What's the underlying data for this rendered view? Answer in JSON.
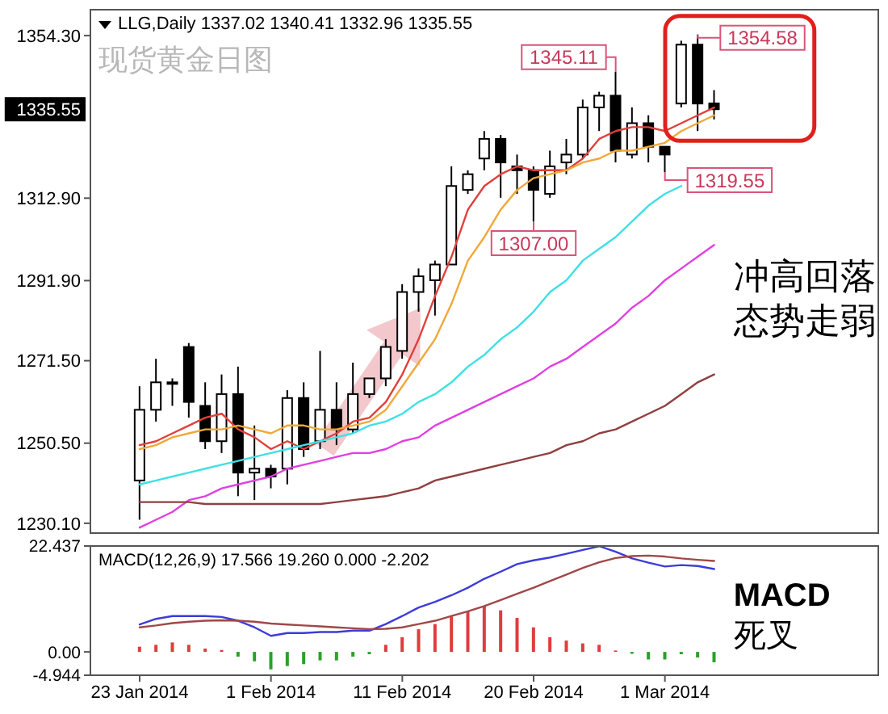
{
  "chart_data": [
    {
      "type": "candlestick",
      "title": "LLG,Daily 1337.02 1340.41 1332.96 1335.55",
      "subtitle": "现货黄金日图",
      "categories": [
        null,
        null,
        null,
        null,
        null,
        null,
        null,
        null,
        null,
        null,
        null,
        null,
        null,
        null,
        null,
        null,
        null,
        null,
        null,
        null,
        null,
        null,
        null,
        null,
        null,
        null,
        null,
        null,
        null,
        null,
        null,
        null,
        null,
        null,
        null,
        null
      ],
      "ohlc": [
        [
          1241,
          1265,
          1231,
          1259
        ],
        [
          1259,
          1272,
          1256,
          1266
        ],
        [
          1266,
          1267,
          1260,
          1266
        ],
        [
          1275,
          1276,
          1257,
          1261
        ],
        [
          1260,
          1266,
          1249,
          1251
        ],
        [
          1251,
          1268,
          1248,
          1263
        ],
        [
          1263,
          1270,
          1237,
          1243
        ],
        [
          1243,
          1255,
          1236,
          1244
        ],
        [
          1244,
          1245,
          1239,
          1242
        ],
        [
          1244,
          1264,
          1240,
          1262
        ],
        [
          1262,
          1266,
          1247,
          1249
        ],
        [
          1251,
          1274,
          1249,
          1259
        ],
        [
          1259,
          1266,
          1250,
          1254
        ],
        [
          1254,
          1271,
          1253,
          1263
        ],
        [
          1263,
          1267,
          1262,
          1267
        ],
        [
          1267,
          1277,
          1265,
          1275
        ],
        [
          1274,
          1291,
          1272,
          1289
        ],
        [
          1289,
          1295,
          1284,
          1293
        ],
        [
          1292,
          1297,
          1283,
          1296
        ],
        [
          1296,
          1321,
          1296,
          1316
        ],
        [
          1315,
          1320,
          1314,
          1319
        ],
        [
          1323,
          1330,
          1320,
          1328
        ],
        [
          1328,
          1329,
          1313,
          1322
        ],
        [
          1321,
          1324,
          1314,
          1320
        ],
        [
          1320,
          1321,
          1307,
          1315
        ],
        [
          1314,
          1325,
          1313,
          1321
        ],
        [
          1322,
          1328,
          1319,
          1324
        ],
        [
          1324,
          1338,
          1323,
          1336
        ],
        [
          1336,
          1340,
          1330,
          1339
        ],
        [
          1339,
          1345.11,
          1322,
          1325
        ],
        [
          1324,
          1336,
          1323,
          1332
        ],
        [
          1332,
          1334,
          1322,
          1326
        ],
        [
          1326,
          1326,
          1319.55,
          1324
        ],
        [
          1337,
          1353,
          1336,
          1352
        ],
        [
          1352,
          1354.58,
          1330,
          1337
        ],
        [
          1337.02,
          1340.41,
          1332.96,
          1335.55
        ]
      ],
      "series": [
        {
          "type": "line",
          "color": "#e0403c",
          "values": [
            1250,
            1251,
            1253,
            1255,
            1257,
            1258,
            1254,
            1252,
            1249,
            1251,
            1249,
            1251,
            1253,
            1256,
            1257,
            1261,
            1268,
            1277,
            1288,
            1298,
            1310,
            1316,
            1319,
            1321,
            1320,
            1320,
            1320,
            1323,
            1328,
            1330,
            1331,
            1331,
            1330,
            1332,
            1334,
            1336
          ]
        },
        {
          "type": "line",
          "color": "#f0a838",
          "values": [
            1249,
            1250,
            1252,
            1253,
            1254,
            1254,
            1255,
            1254,
            1253,
            1255,
            1255,
            1254,
            1254,
            1255,
            1256,
            1259,
            1265,
            1271,
            1277,
            1286,
            1297,
            1303,
            1310,
            1315,
            1318,
            1319,
            1320,
            1322,
            1323,
            1325,
            1325,
            1326,
            1327,
            1330,
            1332,
            1334
          ]
        },
        {
          "type": "line",
          "color": "#3ee0e6",
          "values": [
            1240,
            1241,
            1242,
            1243,
            1244,
            1245,
            1246,
            1247,
            1248,
            1249,
            1250,
            1251,
            1252,
            1253,
            1255,
            1256,
            1258,
            1261,
            1263,
            1266,
            1270,
            1273,
            1277,
            1280,
            1284,
            1289,
            1292,
            1297,
            1300,
            1303,
            1307,
            1311,
            1314,
            1316,
            null,
            null
          ]
        },
        {
          "type": "line",
          "color": "#e040e0",
          "values": [
            1229,
            1231,
            1233,
            1236,
            1237,
            1239,
            1240,
            1241,
            1242,
            1244,
            1245,
            1246,
            1247,
            1248,
            1248,
            1249,
            1251,
            1252,
            1255,
            1257,
            1259,
            1261,
            1263,
            1265,
            1267,
            1270,
            1272,
            1275,
            1278,
            1281,
            1285,
            1288,
            1292,
            1295,
            1298,
            1301
          ]
        },
        {
          "type": "line",
          "color": "#904040",
          "values": [
            1235.5,
            1235.5,
            1235.5,
            1235.5,
            1235,
            1235,
            1235,
            1235,
            1235,
            1235,
            1235,
            1235,
            1235.5,
            1236,
            1236.5,
            1237,
            1238,
            1239,
            1241,
            1242,
            1243,
            1244,
            1245,
            1246,
            1247,
            1248,
            1250,
            1251,
            1253,
            1254,
            1256,
            1258,
            1260,
            1263,
            1266,
            1268
          ]
        }
      ],
      "ylim": [
        1227.6,
        1360.9
      ],
      "yticks": [
        {
          "value": 1230.1,
          "label": "1230.10"
        },
        {
          "value": 1250.5,
          "label": "1250.50"
        },
        {
          "value": 1271.5,
          "label": "1271.50"
        },
        {
          "value": 1291.9,
          "label": "1291.90"
        },
        {
          "value": 1312.9,
          "label": "1312.90"
        },
        {
          "value": 1354.3,
          "label": "1354.30"
        }
      ],
      "tick_labels": "y",
      "annotations": [
        "1345.11",
        "1307.00",
        "1354.58",
        "1319.55",
        "1335.55",
        "冲高回落",
        "态势走弱"
      ]
    },
    {
      "type": "bar",
      "title": "MACD(12,26,9) 17.566 19.260 0.000 -2.202",
      "categories": [
        "23 Jan 2014",
        null,
        null,
        null,
        null,
        null,
        null,
        null,
        "1 Feb 2014",
        null,
        null,
        null,
        null,
        null,
        null,
        null,
        "11 Feb 2014",
        null,
        null,
        null,
        null,
        null,
        null,
        null,
        "20 Feb 2014",
        null,
        null,
        null,
        null,
        null,
        null,
        null,
        "1 Mar 2014",
        null,
        null,
        null
      ],
      "series": [
        {
          "type": "bar",
          "colors": [
            "#e03c3c",
            "#e03c3c",
            "#e03c3c",
            "#e03c3c",
            "#e03c3c",
            "#e03c3c",
            "#2ca02c",
            "#2ca02c",
            "#2ca02c",
            "#2ca02c",
            "#2ca02c",
            "#2ca02c",
            "#2ca02c",
            "#2ca02c",
            "#2ca02c",
            "#e03c3c",
            "#e03c3c",
            "#e03c3c",
            "#e03c3c",
            "#e03c3c",
            "#e03c3c",
            "#e03c3c",
            "#e03c3c",
            "#e03c3c",
            "#e03c3c",
            "#e03c3c",
            "#e03c3c",
            "#e03c3c",
            "#e03c3c",
            "#e03c3c",
            "#2ca02c",
            "#2ca02c",
            "#2ca02c",
            "#2ca02c",
            "#2ca02c",
            "#2ca02c"
          ],
          "values": [
            1.1,
            1.5,
            2.0,
            1.5,
            0.7,
            0.4,
            -1.0,
            -2.0,
            -3.7,
            -3.0,
            -2.6,
            -1.8,
            -1.8,
            -1.0,
            -0.5,
            1.5,
            3.1,
            4.8,
            5.9,
            7.5,
            8.6,
            9.7,
            8.8,
            7.2,
            5.2,
            3.1,
            2.4,
            1.8,
            1.5,
            0.3,
            -0.4,
            -1.6,
            -1.6,
            -0.5,
            -1.2,
            -2.202
          ]
        },
        {
          "type": "line",
          "color": "#3c3cd8",
          "values": [
            5.8,
            7.0,
            7.6,
            7.6,
            7.6,
            7.4,
            6.6,
            5.2,
            3.4,
            4.0,
            4.0,
            4.2,
            4.2,
            4.5,
            4.5,
            5.9,
            7.6,
            9.4,
            10.6,
            12.0,
            13.6,
            15.5,
            17.0,
            18.6,
            19.4,
            20.0,
            20.8,
            21.6,
            22.4,
            21.2,
            19.8,
            18.9,
            18.1,
            18.4,
            18.2,
            17.566
          ]
        },
        {
          "type": "line",
          "color": "#a04848",
          "values": [
            5.2,
            5.6,
            6.1,
            6.4,
            6.6,
            6.7,
            6.6,
            6.4,
            6.0,
            5.8,
            5.6,
            5.4,
            5.2,
            5.0,
            4.8,
            4.9,
            5.2,
            5.9,
            6.6,
            7.6,
            8.6,
            9.7,
            11.0,
            12.3,
            13.6,
            15.0,
            16.4,
            17.8,
            19.0,
            19.9,
            20.3,
            20.4,
            20.2,
            19.8,
            19.5,
            19.26
          ]
        }
      ],
      "ylim": [
        -4.944,
        22.437
      ],
      "yticks": [
        -4.944,
        {
          "value": 0,
          "label": "0.00"
        },
        22.437
      ],
      "annotations": [
        "MACD",
        "死叉"
      ]
    }
  ]
}
